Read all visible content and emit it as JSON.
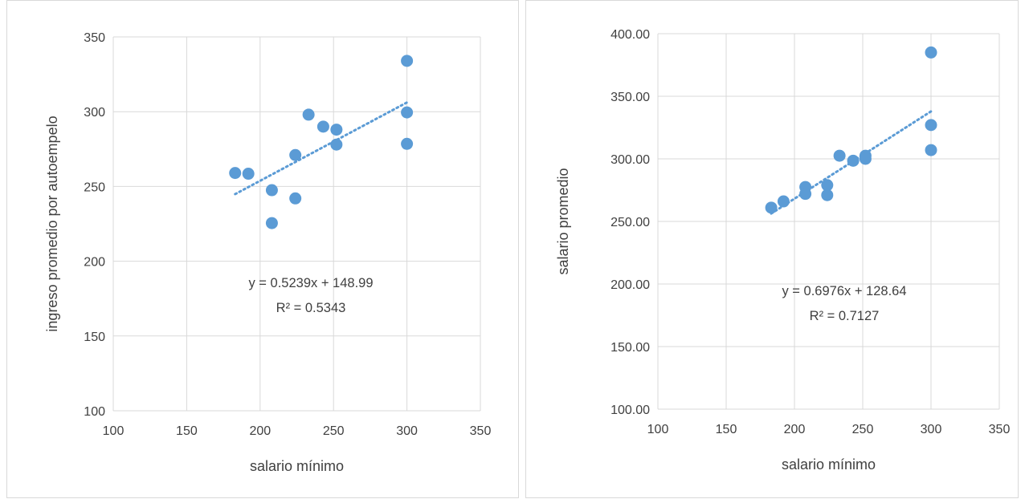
{
  "chart_data": [
    {
      "type": "scatter",
      "xlabel": "salario mínimo",
      "ylabel": "ingreso promedio por autoempelo",
      "xlim": [
        100,
        350
      ],
      "ylim": [
        100,
        350
      ],
      "x_ticks": [
        "100",
        "150",
        "200",
        "250",
        "300",
        "350"
      ],
      "y_ticks": [
        "100",
        "150",
        "200",
        "250",
        "300",
        "350"
      ],
      "grid": true,
      "points": [
        {
          "x": 183,
          "y": 259
        },
        {
          "x": 192,
          "y": 258.5
        },
        {
          "x": 208,
          "y": 247.5
        },
        {
          "x": 208,
          "y": 225.5
        },
        {
          "x": 224,
          "y": 271
        },
        {
          "x": 224,
          "y": 242
        },
        {
          "x": 233,
          "y": 298
        },
        {
          "x": 243,
          "y": 290
        },
        {
          "x": 252,
          "y": 288
        },
        {
          "x": 252,
          "y": 278
        },
        {
          "x": 300,
          "y": 334
        },
        {
          "x": 300,
          "y": 299.5
        },
        {
          "x": 300,
          "y": 278.5
        }
      ],
      "trendline": {
        "type": "linear",
        "slope": 0.5239,
        "intercept": 148.99,
        "x_range": [
          183,
          300
        ]
      },
      "annotations": [
        "y = 0.5239x + 148.99",
        "R² = 0.5343"
      ]
    },
    {
      "type": "scatter",
      "xlabel": "salario mínimo",
      "ylabel": "salario promedio",
      "xlim": [
        100,
        350
      ],
      "ylim": [
        100,
        400
      ],
      "x_ticks": [
        "100",
        "150",
        "200",
        "250",
        "300",
        "350"
      ],
      "y_ticks": [
        "100.00",
        "150.00",
        "200.00",
        "250.00",
        "300.00",
        "350.00",
        "400.00"
      ],
      "grid": true,
      "points": [
        {
          "x": 183,
          "y": 261
        },
        {
          "x": 192,
          "y": 266
        },
        {
          "x": 208,
          "y": 277.5
        },
        {
          "x": 208,
          "y": 272
        },
        {
          "x": 224,
          "y": 279
        },
        {
          "x": 224,
          "y": 271
        },
        {
          "x": 233,
          "y": 302.5
        },
        {
          "x": 243,
          "y": 298.5
        },
        {
          "x": 252,
          "y": 302.5
        },
        {
          "x": 252,
          "y": 300
        },
        {
          "x": 300,
          "y": 385
        },
        {
          "x": 300,
          "y": 327
        },
        {
          "x": 300,
          "y": 307
        }
      ],
      "trendline": {
        "type": "linear",
        "slope": 0.6976,
        "intercept": 128.64,
        "x_range": [
          183,
          300
        ]
      },
      "annotations": [
        "y = 0.6976x + 128.64",
        "R² = 0.7127"
      ]
    }
  ],
  "colors": {
    "marker": "#5b9bd5",
    "grid": "#d9d9d9",
    "text": "#404040"
  }
}
